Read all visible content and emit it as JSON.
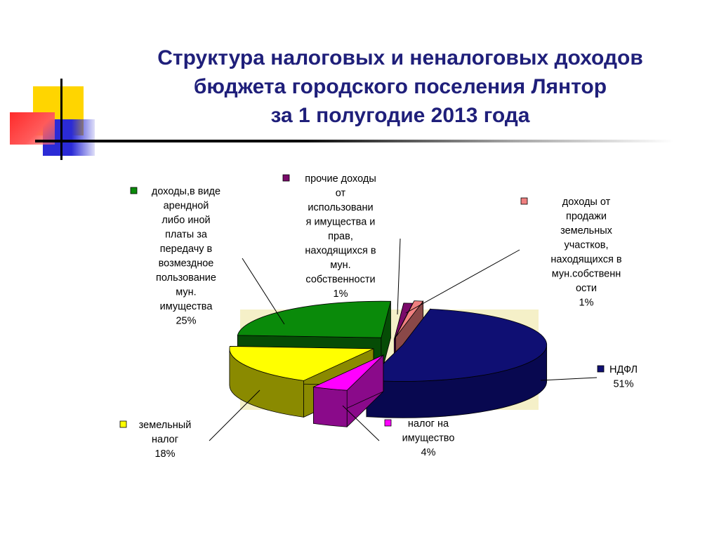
{
  "title": {
    "lines": [
      "Структура налоговых и неналоговых доходов",
      "бюджета  городского поселения Лянтор",
      "за   1 полугодие 2013 года"
    ]
  },
  "colors": {
    "title": "#1f1f7a",
    "plot_area": "#f5f0c8",
    "deco_yellow": "#ffd500",
    "deco_red": "#ff3b3b",
    "deco_blue": "#2b2bd6"
  },
  "chart_data": {
    "type": "pie",
    "style": "3d-exploded",
    "legend": "none",
    "slices": [
      {
        "label_lines": [
          "НДФЛ"
        ],
        "value": 51,
        "value_label": "51%",
        "color": "#0f0f73",
        "side_color": "#080850"
      },
      {
        "label_lines": [
          "налог на",
          "имущество"
        ],
        "value": 4,
        "value_label": "4%",
        "color": "#ff00ff",
        "side_color": "#8a0a8a"
      },
      {
        "label_lines": [
          "земельный",
          "налог"
        ],
        "value": 18,
        "value_label": "18%",
        "color": "#ffff00",
        "side_color": "#8a8a00"
      },
      {
        "label_lines": [
          "доходы,в виде",
          "арендной",
          "либо иной",
          "платы за",
          "передачу в",
          "возмездное",
          "пользование",
          "мун.",
          "имущества"
        ],
        "value": 25,
        "value_label": "25%",
        "color": "#0a8a0a",
        "side_color": "#064c06"
      },
      {
        "label_lines": [
          "прочие доходы",
          "от",
          "использовани",
          "я имущества и",
          "прав,",
          "находящихся в",
          "мун.",
          "собственности"
        ],
        "value": 1,
        "value_label": "1%",
        "color": "#7a0a6a",
        "side_color": "#4a0640"
      },
      {
        "label_lines": [
          "доходы от",
          "продажи",
          "земельных",
          "участков,",
          "находящихся в",
          "мун.собственн",
          "ости"
        ],
        "value": 1,
        "value_label": "1%",
        "color": "#f08080",
        "side_color": "#8a4848"
      }
    ]
  }
}
